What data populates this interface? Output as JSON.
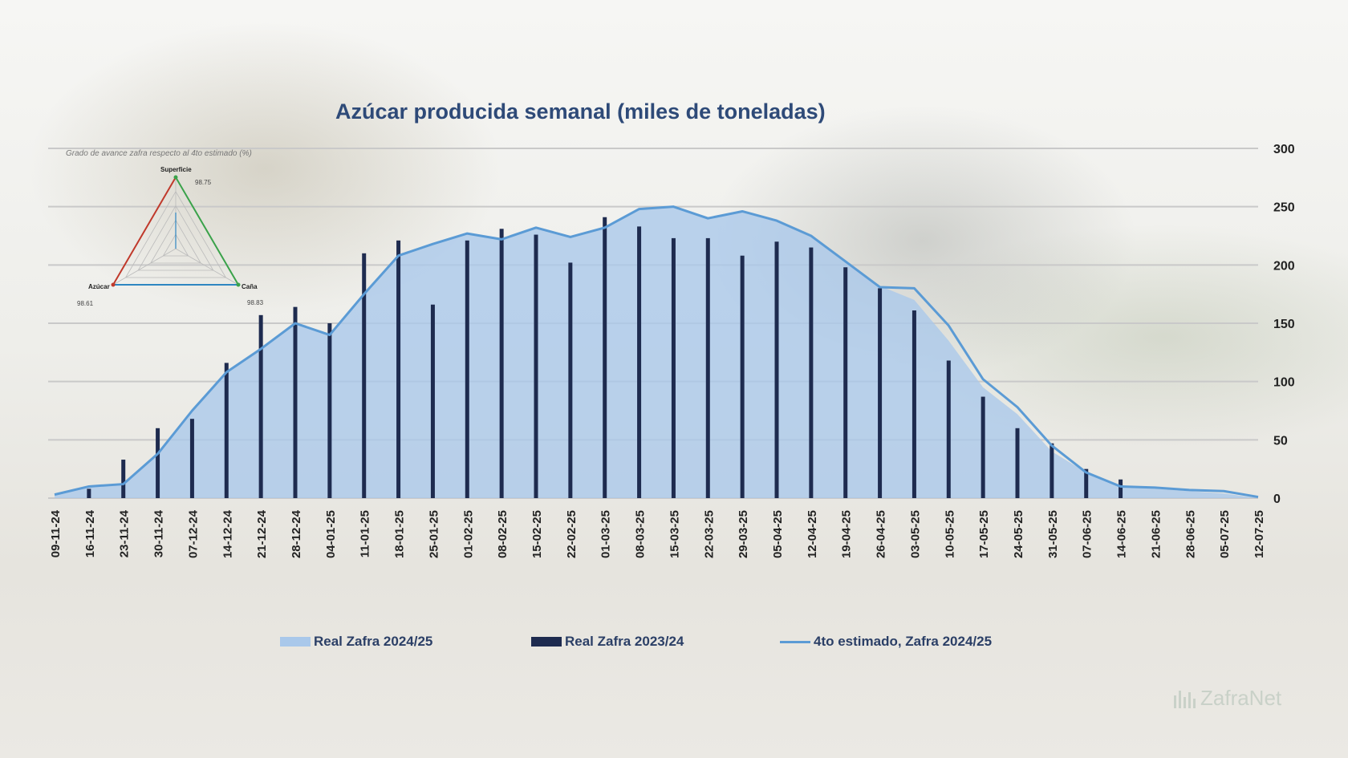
{
  "chart_data": {
    "type": "bar+area+line",
    "title": "Azúcar producida semanal (miles de toneladas)",
    "ylim": [
      0,
      300
    ],
    "yticks": [
      0,
      50,
      100,
      150,
      200,
      250,
      300
    ],
    "categories": [
      "09-11-24",
      "16-11-24",
      "23-11-24",
      "30-11-24",
      "07-12-24",
      "14-12-24",
      "21-12-24",
      "28-12-24",
      "04-01-25",
      "11-01-25",
      "18-01-25",
      "25-01-25",
      "01-02-25",
      "08-02-25",
      "15-02-25",
      "22-02-25",
      "01-03-25",
      "08-03-25",
      "15-03-25",
      "22-03-25",
      "29-03-25",
      "05-04-25",
      "12-04-25",
      "19-04-25",
      "26-04-25",
      "03-05-25",
      "10-05-25",
      "17-05-25",
      "24-05-25",
      "31-05-25",
      "07-06-25",
      "14-06-25",
      "21-06-25",
      "28-06-25",
      "05-07-25",
      "12-07-25"
    ],
    "series": [
      {
        "name": "Real Zafra 2024/25",
        "kind": "area",
        "color": "#a9c8ea",
        "values": [
          3,
          10,
          12,
          38,
          75,
          108,
          128,
          150,
          140,
          175,
          208,
          218,
          227,
          222,
          232,
          224,
          232,
          248,
          250,
          240,
          246,
          238,
          225,
          203,
          182,
          170,
          135,
          95,
          72,
          40,
          22,
          10,
          8,
          6,
          4,
          0
        ]
      },
      {
        "name": "Real Zafra 2023/24",
        "kind": "bar",
        "color": "#1e2b4f",
        "values": [
          0,
          8,
          33,
          60,
          68,
          116,
          157,
          164,
          150,
          210,
          221,
          166,
          221,
          231,
          226,
          202,
          241,
          233,
          223,
          223,
          208,
          220,
          215,
          198,
          180,
          161,
          118,
          87,
          60,
          47,
          25,
          16,
          0,
          0,
          0,
          0
        ]
      },
      {
        "name": "4to estimado, Zafra 2024/25",
        "kind": "line",
        "color": "#5b9bd5",
        "values": [
          3,
          10,
          12,
          38,
          75,
          108,
          128,
          150,
          140,
          175,
          208,
          218,
          227,
          222,
          232,
          224,
          232,
          248,
          250,
          240,
          246,
          238,
          225,
          203,
          181,
          180,
          148,
          102,
          78,
          45,
          22,
          10,
          9,
          7,
          6,
          1
        ]
      }
    ],
    "radar": {
      "title": "Grado de avance zafra respecto al 4to estimado (%)",
      "axes": [
        {
          "label": "Superficie",
          "value": "98.75"
        },
        {
          "label": "Caña",
          "value": "98.83"
        },
        {
          "label": "Azúcar",
          "value": "98.61"
        }
      ],
      "colors": [
        "#3aa24a",
        "#2e86c1",
        "#c0392b"
      ]
    }
  },
  "legend": {
    "area_label": "Real Zafra 2024/25",
    "bar_label": "Real Zafra 2023/24",
    "line_label": "4to estimado, Zafra 2024/25"
  },
  "brand": {
    "name": "ZafraNet",
    "icon": "bars-logo-icon"
  }
}
